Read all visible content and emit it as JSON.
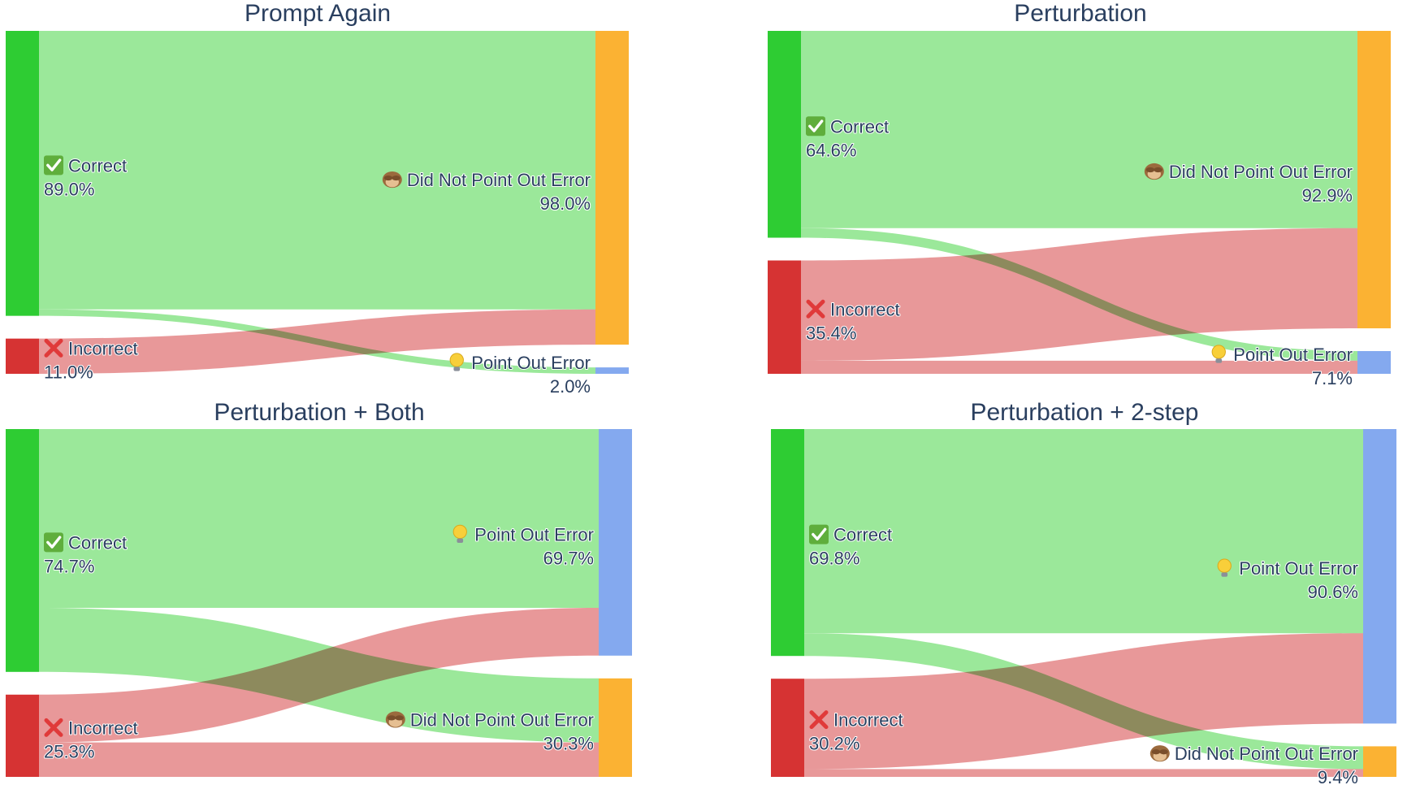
{
  "colors": {
    "correct_node": "#2ecc33",
    "incorrect_node": "#d63333",
    "did_not_node": "#fbb233",
    "point_out_node": "#84a9ef",
    "correct_link": "#9be89a",
    "incorrect_link": "#e89899",
    "overlap_link": "#a58a52"
  },
  "chart_data": [
    {
      "type": "sankey",
      "title": "Prompt Again",
      "sources": [
        {
          "icon": "check-mark-icon",
          "label": "Correct",
          "percent": "89.0%",
          "value": 89.0
        },
        {
          "icon": "cross-mark-icon",
          "label": "Incorrect",
          "percent": "11.0%",
          "value": 11.0
        }
      ],
      "targets": [
        {
          "icon": "see-no-evil-monkey-icon",
          "label": "Did Not Point Out Error",
          "percent": "98.0%",
          "value": 98.0
        },
        {
          "icon": "light-bulb-icon",
          "label": "Point Out Error",
          "percent": "2.0%",
          "value": 2.0
        }
      ],
      "flows": [
        {
          "from": "Correct",
          "to": "Did Not Point Out Error",
          "value": 87.0
        },
        {
          "from": "Correct",
          "to": "Point Out Error",
          "value": 2.0
        },
        {
          "from": "Incorrect",
          "to": "Did Not Point Out Error",
          "value": 11.0
        },
        {
          "from": "Incorrect",
          "to": "Point Out Error",
          "value": 0.0
        }
      ]
    },
    {
      "type": "sankey",
      "title": "Perturbation",
      "sources": [
        {
          "icon": "check-mark-icon",
          "label": "Correct",
          "percent": "64.6%",
          "value": 64.6
        },
        {
          "icon": "cross-mark-icon",
          "label": "Incorrect",
          "percent": "35.4%",
          "value": 35.4
        }
      ],
      "targets": [
        {
          "icon": "see-no-evil-monkey-icon",
          "label": "Did Not Point Out Error",
          "percent": "92.9%",
          "value": 92.9
        },
        {
          "icon": "light-bulb-icon",
          "label": "Point Out Error",
          "percent": "7.1%",
          "value": 7.1
        }
      ],
      "flows": [
        {
          "from": "Correct",
          "to": "Did Not Point Out Error",
          "value": 61.6
        },
        {
          "from": "Correct",
          "to": "Point Out Error",
          "value": 3.0
        },
        {
          "from": "Incorrect",
          "to": "Did Not Point Out Error",
          "value": 31.3
        },
        {
          "from": "Incorrect",
          "to": "Point Out Error",
          "value": 4.1
        }
      ]
    },
    {
      "type": "sankey",
      "title": "Perturbation + Both",
      "sources": [
        {
          "icon": "check-mark-icon",
          "label": "Correct",
          "percent": "74.7%",
          "value": 74.7
        },
        {
          "icon": "cross-mark-icon",
          "label": "Incorrect",
          "percent": "25.3%",
          "value": 25.3
        }
      ],
      "targets": [
        {
          "icon": "light-bulb-icon",
          "label": "Point Out Error",
          "percent": "69.7%",
          "value": 69.7
        },
        {
          "icon": "see-no-evil-monkey-icon",
          "label": "Did Not Point Out Error",
          "percent": "30.3%",
          "value": 30.3
        }
      ],
      "flows": [
        {
          "from": "Correct",
          "to": "Point Out Error",
          "value": 55.0
        },
        {
          "from": "Correct",
          "to": "Did Not Point Out Error",
          "value": 19.7
        },
        {
          "from": "Incorrect",
          "to": "Point Out Error",
          "value": 14.7
        },
        {
          "from": "Incorrect",
          "to": "Did Not Point Out Error",
          "value": 10.6
        }
      ]
    },
    {
      "type": "sankey",
      "title": "Perturbation + 2-step",
      "sources": [
        {
          "icon": "check-mark-icon",
          "label": "Correct",
          "percent": "69.8%",
          "value": 69.8
        },
        {
          "icon": "cross-mark-icon",
          "label": "Incorrect",
          "percent": "30.2%",
          "value": 30.2
        }
      ],
      "targets": [
        {
          "icon": "light-bulb-icon",
          "label": "Point Out Error",
          "percent": "90.6%",
          "value": 90.6
        },
        {
          "icon": "see-no-evil-monkey-icon",
          "label": "Did Not Point Out Error",
          "percent": "9.4%",
          "value": 9.4
        }
      ],
      "flows": [
        {
          "from": "Correct",
          "to": "Point Out Error",
          "value": 62.8
        },
        {
          "from": "Correct",
          "to": "Did Not Point Out Error",
          "value": 7.0
        },
        {
          "from": "Incorrect",
          "to": "Point Out Error",
          "value": 27.8
        },
        {
          "from": "Incorrect",
          "to": "Did Not Point Out Error",
          "value": 2.4
        }
      ]
    }
  ]
}
